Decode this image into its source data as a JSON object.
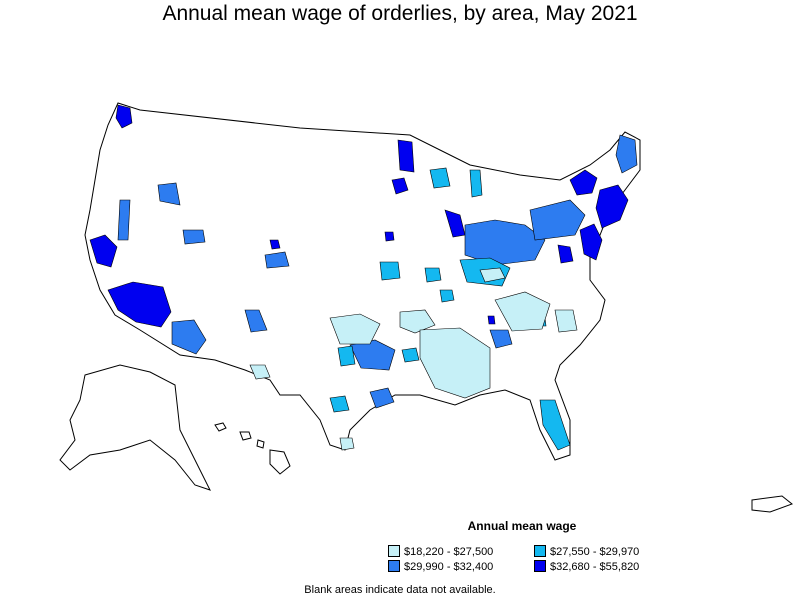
{
  "title": "Annual mean wage of orderlies, by area, May 2021",
  "legend": {
    "title": "Annual mean wage",
    "items": [
      {
        "label": "$18,220 - $27,500",
        "color": "#c6f0f7"
      },
      {
        "label": "$27,550 - $29,970",
        "color": "#14b8f0"
      },
      {
        "label": "$29,990 - $32,400",
        "color": "#2d7cf0"
      },
      {
        "label": "$32,680 - $55,820",
        "color": "#0000f0"
      }
    ]
  },
  "footnote": "Blank areas indicate data not available.",
  "colors": {
    "outline": "#000000",
    "blank": "#ffffff"
  }
}
